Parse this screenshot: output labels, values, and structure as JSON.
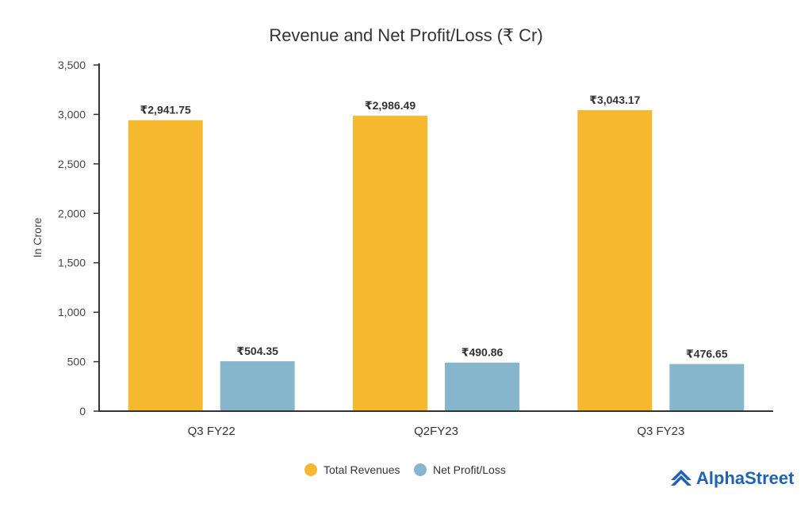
{
  "chart_data": {
    "type": "bar",
    "title": "Revenue and Net Profit/Loss (₹ Cr)",
    "xlabel": "",
    "ylabel": "In Crore",
    "categories": [
      "Q3 FY22",
      "Q2FY23",
      "Q3 FY23"
    ],
    "ylim": [
      0,
      3500
    ],
    "yticks": [
      0,
      500,
      1000,
      1500,
      2000,
      2500,
      3000,
      3500
    ],
    "ytick_labels": [
      "0",
      "500",
      "1,000",
      "1,500",
      "2,000",
      "2,500",
      "3,000",
      "3,500"
    ],
    "series": [
      {
        "name": "Total Revenues",
        "color": "#f5b82e",
        "values": [
          2941.75,
          2986.49,
          3043.17
        ],
        "labels": [
          "₹2,941.75",
          "₹2,986.49",
          "₹3,043.17"
        ]
      },
      {
        "name": "Net Profit/Loss",
        "color": "#86b6cb",
        "values": [
          504.35,
          490.86,
          476.65
        ],
        "labels": [
          "₹504.35",
          "₹490.86",
          "₹476.65"
        ]
      }
    ],
    "grid": false,
    "legend_position": "bottom-center"
  },
  "brand": {
    "name": "AlphaStreet",
    "color": "#1f63b0",
    "icon": "alphastreet-logo-icon"
  }
}
